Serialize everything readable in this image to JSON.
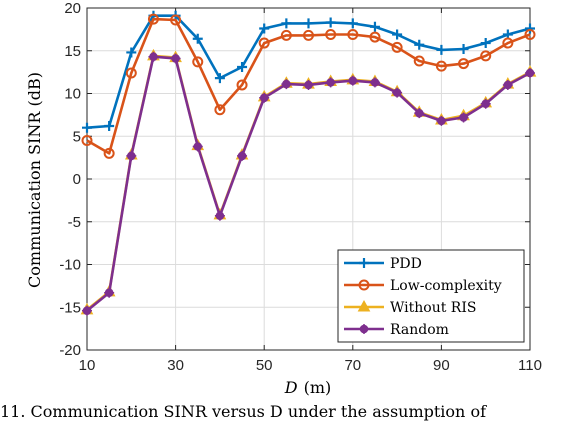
{
  "chart_data": {
    "type": "line",
    "ylabel": "Communication SINR (dB)",
    "xlabel_var": "D",
    "xlabel_unit": "(m)",
    "xlim": [
      10,
      110
    ],
    "ylim": [
      -20,
      20
    ],
    "xticks": [
      10,
      30,
      50,
      70,
      90,
      110
    ],
    "yticks": [
      -20,
      -15,
      -10,
      -5,
      0,
      5,
      10,
      15,
      20
    ],
    "grid": true,
    "legend_position": "bottom-right",
    "x": [
      10,
      15,
      20,
      25,
      30,
      35,
      40,
      45,
      50,
      55,
      60,
      65,
      70,
      75,
      80,
      85,
      90,
      95,
      100,
      105,
      110
    ],
    "series": [
      {
        "name": "PDD",
        "color": "#0072BD",
        "marker": "plus",
        "values": [
          6.0,
          6.2,
          14.8,
          19.1,
          19.1,
          16.4,
          11.8,
          13.1,
          17.6,
          18.2,
          18.2,
          18.3,
          18.2,
          17.8,
          16.9,
          15.7,
          15.1,
          15.2,
          15.9,
          16.9,
          17.6
        ]
      },
      {
        "name": "Low-complexity",
        "color": "#D95319",
        "marker": "circle",
        "values": [
          4.5,
          3.0,
          12.4,
          18.7,
          18.6,
          13.7,
          8.1,
          11.0,
          15.9,
          16.8,
          16.8,
          16.9,
          16.9,
          16.6,
          15.4,
          13.8,
          13.2,
          13.5,
          14.4,
          15.9,
          16.9
        ]
      },
      {
        "name": "Without RIS",
        "color": "#EDB120",
        "marker": "triangle",
        "values": [
          -15.3,
          -13.2,
          2.8,
          14.4,
          14.2,
          3.9,
          -4.2,
          2.8,
          9.6,
          11.2,
          11.1,
          11.4,
          11.6,
          11.4,
          10.2,
          7.8,
          6.9,
          7.4,
          8.9,
          11.1,
          12.5
        ]
      },
      {
        "name": "Random",
        "color": "#7E2F8E",
        "marker": "asterisk",
        "values": [
          -15.4,
          -13.3,
          2.7,
          14.3,
          14.1,
          3.8,
          -4.3,
          2.7,
          9.5,
          11.1,
          11.0,
          11.3,
          11.5,
          11.3,
          10.1,
          7.7,
          6.8,
          7.2,
          8.8,
          11.0,
          12.4
        ]
      }
    ]
  },
  "caption": "11.   Communication SINR versus D under the assumption of"
}
